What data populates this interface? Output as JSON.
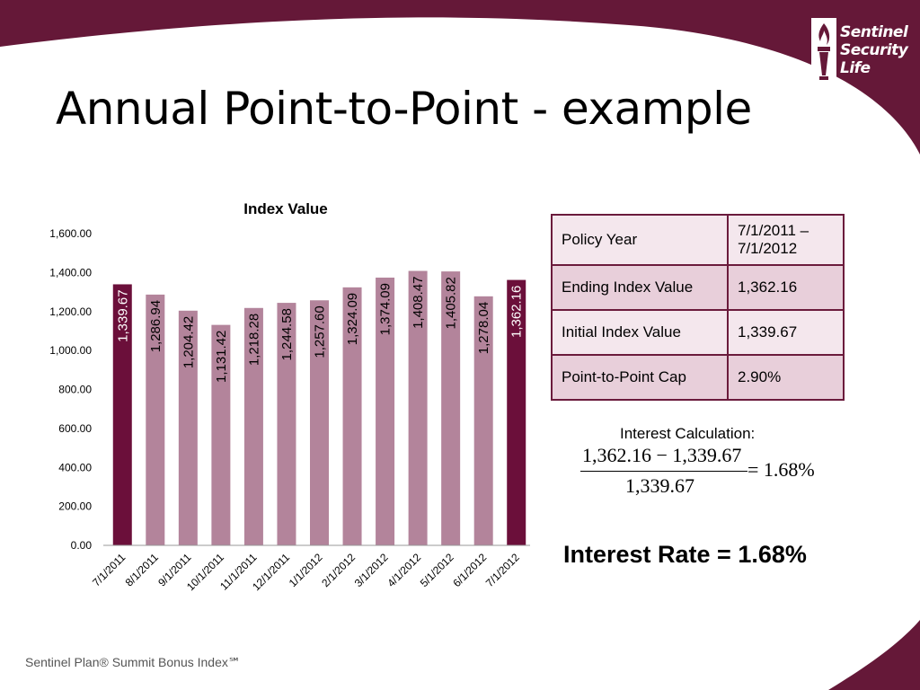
{
  "slide": {
    "title": "Annual Point-to-Point - example",
    "footer": "Sentinel Plan® Summit Bonus Index℠",
    "colors": {
      "brand": "#6b1b3c",
      "highlight_bar": "#6b0f3a",
      "regular_bar": "#b3849b"
    }
  },
  "logo": {
    "icon": "torch-icon",
    "line1": "Sentinel",
    "line2": "Security",
    "line3": "Life"
  },
  "chart_data": {
    "type": "bar",
    "title": "Index Value",
    "categories": [
      "7/1/2011",
      "8/1/2011",
      "9/1/2011",
      "10/1/2011",
      "11/1/2011",
      "12/1/2011",
      "1/1/2012",
      "2/1/2012",
      "3/1/2012",
      "4/1/2012",
      "5/1/2012",
      "6/1/2012",
      "7/1/2012"
    ],
    "values": [
      1339.67,
      1286.94,
      1204.42,
      1131.42,
      1218.28,
      1244.58,
      1257.6,
      1324.09,
      1374.09,
      1408.47,
      1405.82,
      1278.04,
      1362.16
    ],
    "data_labels": [
      "1,339.67",
      "1,286.94",
      "1,204.42",
      "1,131.42",
      "1,218.28",
      "1,244.58",
      "1,257.60",
      "1,324.09",
      "1,374.09",
      "1,408.47",
      "1,405.82",
      "1,278.04",
      "1,362.16"
    ],
    "highlighted": [
      0,
      12
    ],
    "yticks": [
      "0.00",
      "200.00",
      "400.00",
      "600.00",
      "800.00",
      "1,000.00",
      "1,200.00",
      "1,400.00",
      "1,600.00"
    ],
    "ylim": [
      0,
      1600
    ],
    "grid": false,
    "legend": "none"
  },
  "table": {
    "rows": [
      {
        "label": "Policy Year",
        "value": "7/1/2011 – 7/1/2012"
      },
      {
        "label": "Ending Index Value",
        "value": "1,362.16"
      },
      {
        "label": "Initial Index Value",
        "value": "1,339.67"
      },
      {
        "label": "Point-to-Point Cap",
        "value": "2.90%"
      }
    ]
  },
  "calculation": {
    "label": "Interest Calculation:",
    "numerator": "1,362.16 − 1,339.67",
    "denominator": "1,339.67",
    "result": "= 1.68%"
  },
  "interest_rate": "Interest Rate = 1.68%"
}
